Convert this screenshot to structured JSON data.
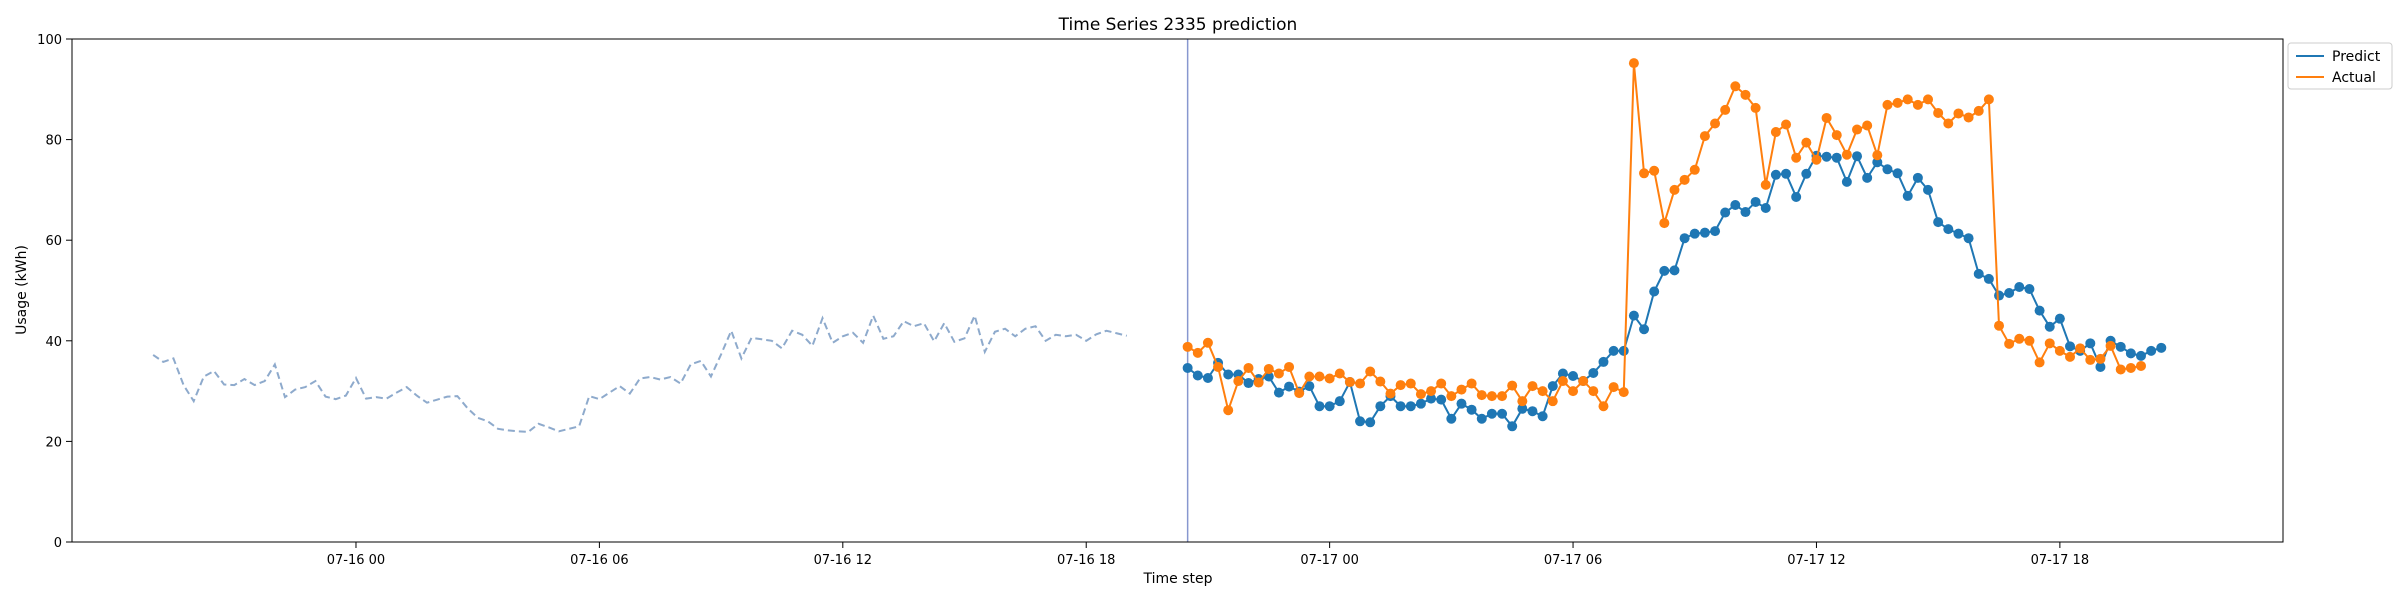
{
  "chart_data": {
    "type": "line",
    "title": "Time Series 2335 prediction",
    "xlabel": "Time step",
    "ylabel": "Usage (kWh)",
    "ylim": [
      0,
      100
    ],
    "yticks": [
      0,
      20,
      40,
      60,
      80,
      100
    ],
    "xlim": [
      "07-15 17:00",
      "07-17 23:30"
    ],
    "xticks": [
      {
        "label": "07-16 00",
        "t": "07-16 00:00"
      },
      {
        "label": "07-16 06",
        "t": "07-16 06:00"
      },
      {
        "label": "07-16 12",
        "t": "07-16 12:00"
      },
      {
        "label": "07-16 18",
        "t": "07-16 18:00"
      },
      {
        "label": "07-17 00",
        "t": "07-17 00:00"
      },
      {
        "label": "07-17 06",
        "t": "07-17 06:00"
      },
      {
        "label": "07-17 12",
        "t": "07-17 12:00"
      },
      {
        "label": "07-17 18",
        "t": "07-17 18:00"
      }
    ],
    "legend_position": "top-right",
    "grid": false,
    "split_line": "07-16 20:30",
    "colors": {
      "history": "#8eaacc",
      "predict": "#1f77b4",
      "actual": "#ff7f0e",
      "split": "#8797cf"
    },
    "history": {
      "start": "07-15 19:00",
      "step_minutes": 15,
      "values": [
        37.2,
        35.8,
        36.5,
        31.2,
        28.0,
        32.9,
        34.0,
        31.3,
        31.2,
        32.4,
        31.2,
        32.0,
        35.3,
        28.8,
        30.3,
        30.8,
        32.0,
        28.9,
        28.4,
        29.1,
        32.6,
        28.5,
        28.8,
        28.5,
        29.7,
        30.8,
        29.1,
        27.7,
        28.3,
        28.9,
        29.0,
        26.6,
        24.7,
        24.0,
        22.5,
        22.2,
        22.0,
        21.9,
        23.5,
        22.8,
        22.0,
        22.5,
        23.0,
        29.0,
        28.4,
        29.7,
        31.0,
        29.5,
        32.5,
        32.8,
        32.3,
        32.8,
        31.5,
        35.3,
        36.0,
        32.9,
        37.3,
        42.0,
        36.5,
        40.6,
        40.3,
        40.0,
        38.5,
        42.0,
        41.2,
        39.0,
        44.5,
        39.6,
        40.9,
        41.6,
        39.6,
        45.0,
        40.4,
        40.9,
        43.9,
        42.9,
        43.5,
        39.9,
        43.5,
        39.8,
        40.5,
        45.0,
        37.8,
        41.8,
        42.4,
        40.9,
        42.4,
        42.9,
        40.0,
        41.2,
        40.9,
        41.2,
        40.0,
        41.3,
        42.0,
        41.5,
        41.0
      ]
    },
    "series": [
      {
        "name": "Predict",
        "start": "07-16 20:30",
        "step_minutes": 15,
        "values": [
          34.6,
          33.1,
          32.6,
          35.6,
          33.3,
          33.3,
          31.6,
          32.4,
          32.9,
          29.7,
          30.9,
          29.9,
          31.0,
          27.0,
          27.0,
          28.0,
          31.8,
          24.0,
          23.8,
          27.0,
          29.0,
          27.0,
          27.0,
          27.5,
          28.5,
          28.3,
          24.5,
          27.5,
          26.3,
          24.5,
          25.5,
          25.5,
          23.0,
          26.5,
          26.0,
          25.0,
          31.0,
          33.5,
          33.0,
          32.0,
          33.6,
          35.8,
          38.0,
          38.0,
          45.0,
          42.3,
          49.8,
          53.9,
          54.0,
          60.4,
          61.3,
          61.5,
          61.8,
          65.5,
          67.0,
          65.6,
          67.6,
          66.4,
          73.0,
          73.2,
          68.6,
          73.2,
          76.8,
          76.6,
          76.4,
          71.6,
          76.7,
          72.4,
          75.5,
          74.1,
          73.3,
          68.8,
          72.4,
          70.0,
          63.6,
          62.2,
          61.3,
          60.4,
          53.3,
          52.3,
          49.0,
          49.5,
          50.7,
          50.3,
          46.0,
          42.8,
          44.4,
          38.9,
          38.0,
          39.5,
          34.8,
          40.0,
          38.8,
          37.5,
          37.0,
          38.0,
          38.6
        ]
      },
      {
        "name": "Actual",
        "start": "07-16 20:30",
        "step_minutes": 15,
        "values": [
          38.8,
          37.6,
          39.6,
          34.8,
          26.2,
          32.0,
          34.6,
          31.7,
          34.4,
          33.5,
          34.8,
          29.6,
          32.9,
          32.9,
          32.5,
          33.5,
          31.8,
          31.5,
          33.9,
          31.9,
          29.5,
          31.2,
          31.5,
          29.4,
          30.0,
          31.5,
          29.0,
          30.3,
          31.5,
          29.2,
          29.0,
          29.0,
          31.1,
          28.0,
          31.0,
          30.0,
          28.0,
          32.0,
          30.0,
          32.0,
          30.0,
          27.0,
          30.8,
          29.8,
          95.2,
          73.3,
          73.8,
          63.4,
          70.0,
          72.0,
          74.0,
          80.7,
          83.2,
          85.9,
          90.6,
          88.9,
          86.3,
          71.0,
          81.5,
          83.0,
          76.4,
          79.4,
          76.0,
          84.3,
          80.9,
          77.0,
          82.0,
          82.8,
          76.9,
          86.9,
          87.3,
          88.0,
          86.9,
          88.0,
          85.3,
          83.2,
          85.2,
          84.4,
          85.7,
          88.0,
          43.0,
          39.4,
          40.4,
          40.0,
          35.7,
          39.5,
          38.0,
          36.8,
          38.5,
          36.2,
          36.4,
          39.0,
          34.3,
          34.6,
          35.0
        ]
      }
    ]
  }
}
